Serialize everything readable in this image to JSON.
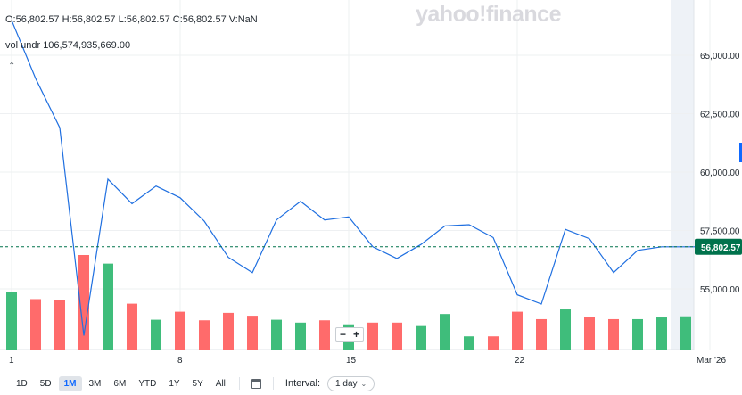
{
  "header": {
    "ohlc": "O:56,802.57  H:56,802.57  L:56,802.57  C:56,802.57  V:NaN",
    "volume": "vol undr  106,574,935,669.00",
    "watermark": "yahoo!finance"
  },
  "chart_data": {
    "type": "line",
    "price_series": {
      "x": [
        1,
        2,
        3,
        4,
        5,
        6,
        7,
        8,
        9,
        10,
        11,
        12,
        13,
        14,
        15,
        16,
        17,
        18,
        19,
        20,
        21,
        22,
        23,
        24,
        25,
        26,
        27,
        28,
        29,
        30
      ],
      "values": [
        66500,
        64000,
        61900,
        53000,
        59700,
        58650,
        59400,
        58900,
        57900,
        56350,
        55700,
        57950,
        58750,
        57950,
        58080,
        56800,
        56300,
        56900,
        57700,
        57750,
        57200,
        54750,
        54350,
        57550,
        57150,
        55700,
        56650,
        56802.57,
        56802.57,
        56802.57
      ]
    },
    "volume_series": {
      "x": [
        1,
        2,
        3,
        4,
        5,
        6,
        7,
        8,
        9,
        10,
        11,
        12,
        13,
        14,
        15,
        16,
        17,
        18,
        19,
        20,
        21,
        22,
        23,
        24,
        25,
        26,
        27,
        28,
        29
      ],
      "values": [
        100,
        88,
        87,
        165,
        150,
        80,
        52,
        66,
        51,
        64,
        59,
        52,
        47,
        51,
        44,
        47,
        47,
        41,
        62,
        23,
        23,
        66,
        53,
        70,
        57,
        53,
        53,
        56,
        58
      ],
      "up": [
        true,
        false,
        false,
        false,
        true,
        false,
        true,
        false,
        false,
        false,
        false,
        true,
        true,
        false,
        true,
        false,
        false,
        true,
        true,
        true,
        false,
        false,
        false,
        true,
        false,
        false,
        true,
        true,
        true
      ]
    },
    "yaxis": {
      "ticks": [
        "65,000.00",
        "62,500.00",
        "60,000.00",
        "57,500.00",
        "55,000.00"
      ],
      "tick_values": [
        65000,
        62500,
        60000,
        57500,
        55000
      ],
      "ylim": [
        52500,
        67500
      ]
    },
    "xaxis": {
      "ticks": [
        "1",
        "8",
        "15",
        "22",
        "Mar '26"
      ],
      "tick_values": [
        1,
        8,
        15,
        22,
        30
      ]
    },
    "current_price": {
      "value": 56802.57,
      "label": "56,802.57"
    },
    "grid": true,
    "colors": {
      "line": "#1f6fe0",
      "up": "#3fbd7b",
      "down": "#ff6b6b",
      "badge": "#00724c",
      "grid": "#eef0f2"
    }
  },
  "controls": {
    "ranges": [
      "1D",
      "5D",
      "1M",
      "3M",
      "6M",
      "YTD",
      "1Y",
      "5Y",
      "All"
    ],
    "active_range": "1M",
    "calendar_icon": "calendar-icon",
    "interval_label": "Interval:",
    "interval_value": "1 day",
    "zoom_out": "−",
    "zoom_in": "+"
  }
}
